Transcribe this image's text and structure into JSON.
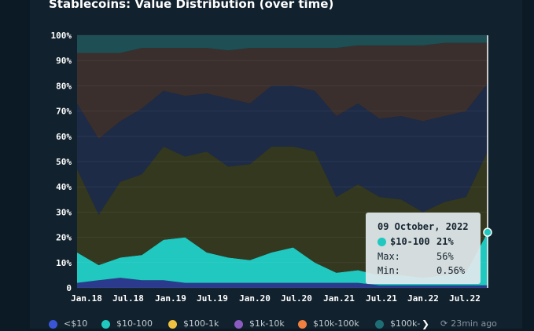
{
  "title": "Stablecoins: Value Distribution (over time)",
  "chart_data": {
    "type": "area",
    "stacked": true,
    "normalized": "percent",
    "title": "Stablecoins: Value Distribution (over time)",
    "xlabel": "",
    "ylabel": "",
    "ylim": [
      0,
      100
    ],
    "yticks": [
      "0",
      "10%",
      "20%",
      "30%",
      "40%",
      "50%",
      "60%",
      "70%",
      "80%",
      "90%",
      "100%"
    ],
    "xticks": [
      "Jan.18",
      "Jul.18",
      "Jan.19",
      "Jul.19",
      "Jan.20",
      "Jul.20",
      "Jan.21",
      "Jul.21",
      "Jan.22",
      "Jul.22"
    ],
    "x": [
      "Jan.18",
      "Apr.18",
      "Jul.18",
      "Oct.18",
      "Jan.19",
      "Apr.19",
      "Jul.19",
      "Oct.19",
      "Jan.20",
      "Apr.20",
      "Jul.20",
      "Oct.20",
      "Jan.21",
      "Apr.21",
      "Jul.21",
      "Oct.21",
      "Jan.22",
      "Apr.22",
      "Jul.22",
      "Oct.22"
    ],
    "grid": true,
    "legend_position": "bottom",
    "series": [
      {
        "name": "<$10",
        "color": "#2b3a8c",
        "values": [
          2,
          3,
          4,
          3,
          3,
          2,
          2,
          2,
          2,
          2,
          2,
          2,
          2,
          2,
          1,
          1,
          1,
          1,
          1,
          1
        ]
      },
      {
        "name": "$10-100",
        "color": "#20c8c0",
        "values": [
          12,
          6,
          8,
          10,
          16,
          18,
          12,
          10,
          9,
          12,
          14,
          8,
          4,
          5,
          4,
          4,
          3,
          4,
          5,
          21
        ]
      },
      {
        "name": "$100-1k",
        "color": "#33381f",
        "values": [
          33,
          20,
          30,
          32,
          37,
          32,
          40,
          36,
          38,
          42,
          40,
          44,
          30,
          34,
          31,
          30,
          26,
          29,
          30,
          32
        ]
      },
      {
        "name": "$1k-10k",
        "color": "#1d2b47",
        "values": [
          26,
          30,
          24,
          26,
          22,
          24,
          23,
          27,
          24,
          24,
          24,
          24,
          32,
          32,
          31,
          33,
          36,
          34,
          34,
          27
        ]
      },
      {
        "name": "$10k-100k",
        "color": "#3a2f2c",
        "values": [
          20,
          34,
          27,
          24,
          17,
          19,
          18,
          19,
          22,
          15,
          15,
          17,
          27,
          23,
          29,
          28,
          30,
          29,
          27,
          16
        ]
      },
      {
        "name": "$100k-",
        "color": "#1d4f55",
        "values": [
          7,
          7,
          7,
          5,
          5,
          5,
          5,
          6,
          5,
          5,
          5,
          5,
          5,
          4,
          4,
          4,
          4,
          3,
          3,
          3
        ]
      }
    ]
  },
  "tooltip": {
    "date": "09 October, 2022",
    "series": "$10-100",
    "value": "21%",
    "max_label": "Max:",
    "max_value": "56%",
    "min_label": "Min:",
    "min_value": "0.56%",
    "color": "#20c8c0"
  },
  "legend": {
    "items": [
      {
        "label": "<$10",
        "color": "#3a55d8"
      },
      {
        "label": "$10-100",
        "color": "#20c8c0"
      },
      {
        "label": "$100-1k",
        "color": "#f0c040"
      },
      {
        "label": "$1k-10k",
        "color": "#8a5cc0"
      },
      {
        "label": "$10k-100k",
        "color": "#f08040"
      },
      {
        "label": "$100k-",
        "color": "#1d6f75"
      }
    ],
    "more_icon": "chevron-right-icon",
    "updated_icon": "refresh-icon",
    "updated_text": "23min ago"
  }
}
